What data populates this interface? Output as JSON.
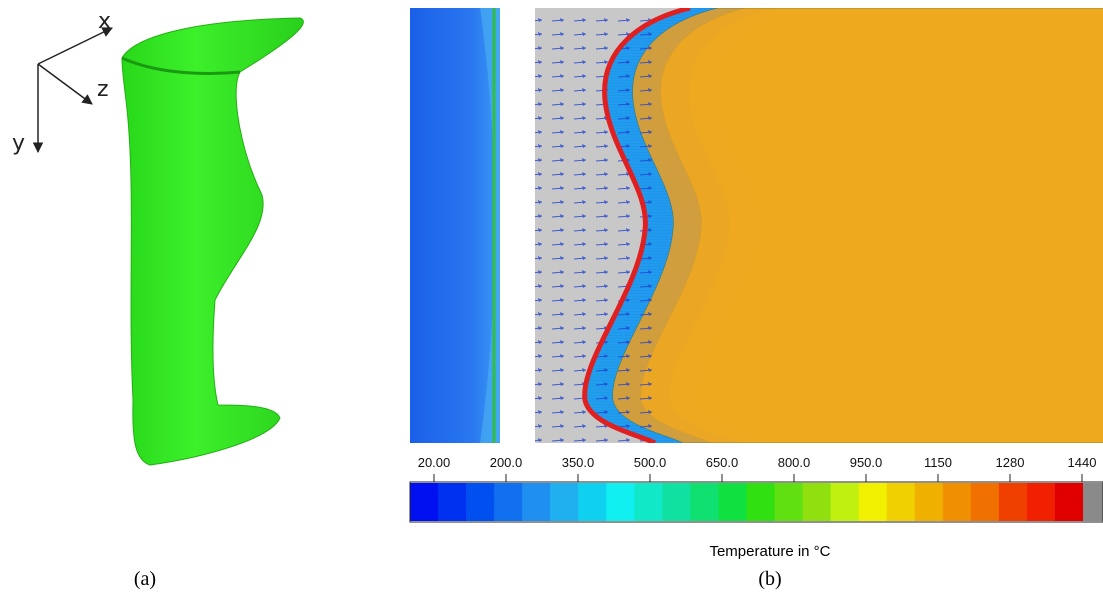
{
  "panel_a": {
    "axis_labels": [
      "x",
      "z",
      "y"
    ],
    "caption": "(a)"
  },
  "panel_b": {
    "colorbar": {
      "ticks": [
        "20.00",
        "200.0",
        "350.0",
        "500.0",
        "650.0",
        "800.0",
        "950.0",
        "1150",
        "1280",
        "1440"
      ],
      "label": "Temperature in °C"
    },
    "caption": "(b)"
  }
}
